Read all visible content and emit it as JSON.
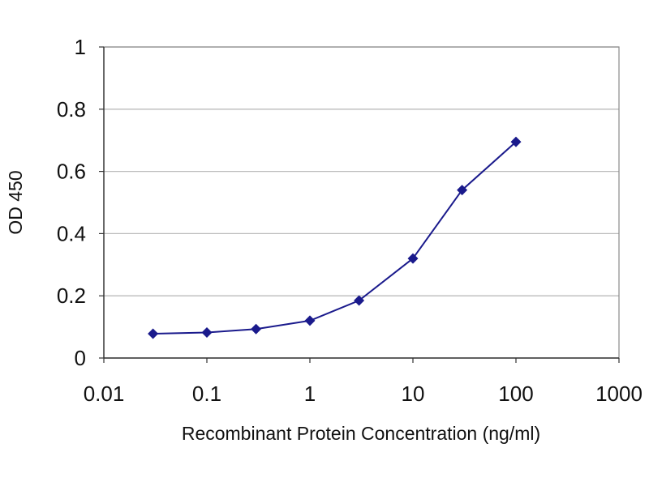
{
  "chart_data": {
    "type": "line",
    "xscale": "log",
    "xlim": [
      0.01,
      1000
    ],
    "ylim": [
      0,
      1
    ],
    "xticks": [
      "0.01",
      "0.1",
      "1",
      "10",
      "100",
      "1000"
    ],
    "yticks": [
      "0",
      "0.2",
      "0.4",
      "0.6",
      "0.8",
      "1"
    ],
    "xlabel": "Recombinant Protein Concentration (ng/ml)",
    "ylabel": "OD 450",
    "grid": "horizontal",
    "legend": "none",
    "series": [
      {
        "color": "#1a1a8c",
        "marker": "diamond",
        "x": [
          0.03,
          0.1,
          0.3,
          1,
          3,
          10,
          30,
          100
        ],
        "y": [
          0.078,
          0.082,
          0.093,
          0.12,
          0.185,
          0.32,
          0.54,
          0.695
        ]
      }
    ]
  },
  "colors": {
    "series": "#1a1a8c",
    "gridline": "#bbbbbb",
    "frame": "#888888",
    "axis": "#333333"
  }
}
